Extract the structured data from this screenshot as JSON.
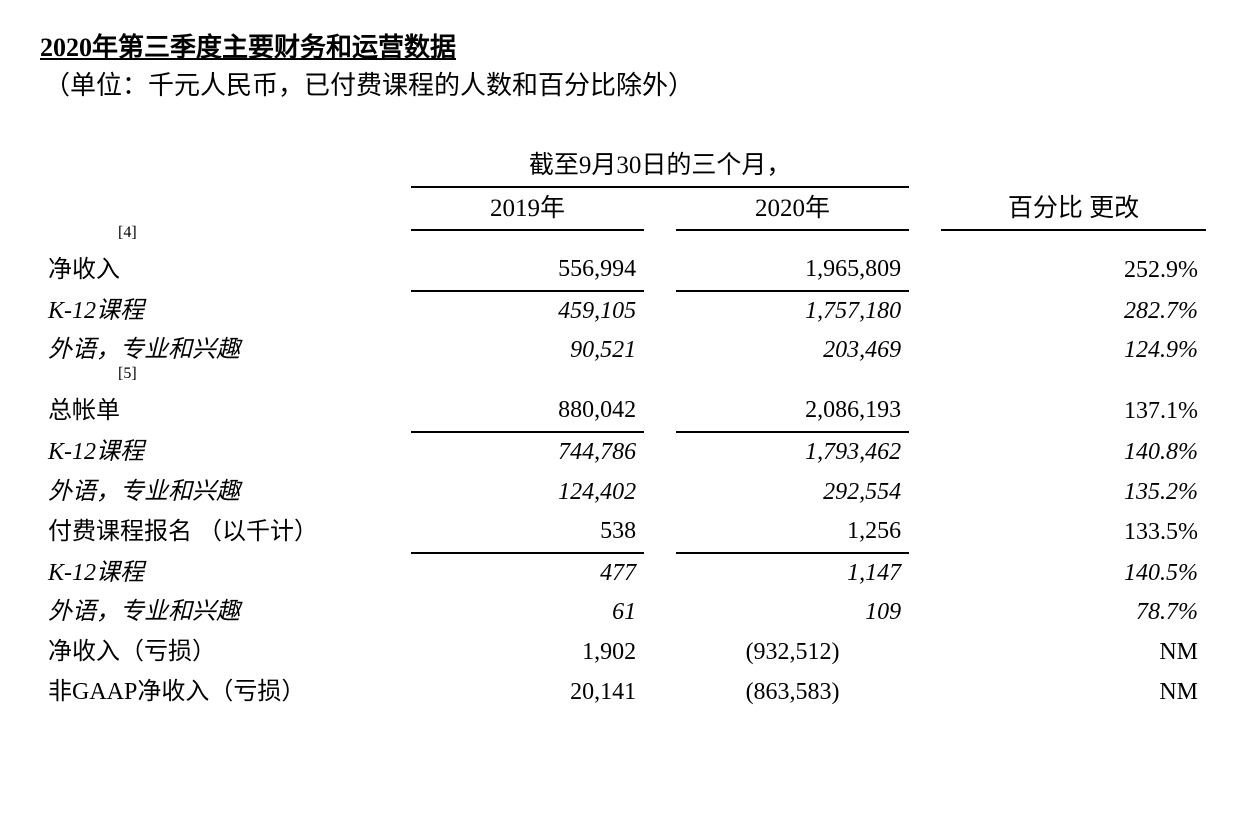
{
  "title": "2020年第三季度主要财务和运营数据",
  "subtitle": "（单位：千元人民币，已付费课程的人数和百分比除外）",
  "header": {
    "spanner": "截至9月30日的三个月，",
    "col_2019": "2019年",
    "col_2020": "2020年",
    "col_pct": "百分比 更改"
  },
  "footnotes": {
    "f4": "[4]",
    "f5": "[5]"
  },
  "rows": {
    "net_rev": {
      "label": "净收入",
      "y2019": "556,994",
      "y2020": "1,965,809",
      "pct": "252.9%",
      "underline": true,
      "italic": false,
      "sub": false
    },
    "net_rev_k12": {
      "label": "K-12课程",
      "y2019": "459,105",
      "y2020": "1,757,180",
      "pct": "282.7%",
      "underline": false,
      "italic": true,
      "sub": true
    },
    "net_rev_other": {
      "label": "外语，专业和兴趣",
      "y2019": "90,521",
      "y2020": "203,469",
      "pct": "124.9%",
      "underline": false,
      "italic": true,
      "sub": true
    },
    "billings": {
      "label": "总帐单",
      "y2019": "880,042",
      "y2020": "2,086,193",
      "pct": "137.1%",
      "underline": true,
      "italic": false,
      "sub": false
    },
    "billings_k12": {
      "label": "K-12课程",
      "y2019": "744,786",
      "y2020": "1,793,462",
      "pct": "140.8%",
      "underline": false,
      "italic": true,
      "sub": true
    },
    "billings_other": {
      "label": "外语，专业和兴趣",
      "y2019": "124,402",
      "y2020": "292,554",
      "pct": "135.2%",
      "underline": false,
      "italic": true,
      "sub": true
    },
    "enroll": {
      "label": "付费课程报名 （以千计）",
      "y2019": "538",
      "y2020": "1,256",
      "pct": "133.5%",
      "underline": true,
      "italic": false,
      "sub": false
    },
    "enroll_k12": {
      "label": "K-12课程",
      "y2019": "477",
      "y2020": "1,147",
      "pct": "140.5%",
      "underline": false,
      "italic": true,
      "sub": true
    },
    "enroll_other": {
      "label": "外语，专业和兴趣",
      "y2019": "61",
      "y2020": "109",
      "pct": "78.7%",
      "underline": false,
      "italic": true,
      "sub": true
    },
    "net_income": {
      "label": "净收入（亏损）",
      "y2019": "1,902",
      "y2020": "(932,512)",
      "pct": "NM",
      "underline": false,
      "italic": false,
      "sub": false,
      "center2020": true
    },
    "nongaap": {
      "label": "非GAAP净收入（亏损）",
      "y2019": "20,141",
      "y2020": "(863,583)",
      "pct": "NM",
      "underline": false,
      "italic": false,
      "sub": false,
      "center2020": true
    }
  },
  "row_order": [
    "net_rev",
    "net_rev_k12",
    "net_rev_other",
    "FOOT5",
    "billings",
    "billings_k12",
    "billings_other",
    "enroll",
    "enroll_k12",
    "enroll_other",
    "net_income",
    "nongaap"
  ],
  "style": {
    "text_color": "#000000",
    "background_color": "#ffffff",
    "border_color": "#000000",
    "title_fontsize": 26,
    "body_fontsize": 24,
    "footnote_fontsize": 16,
    "font_family": "serif"
  }
}
